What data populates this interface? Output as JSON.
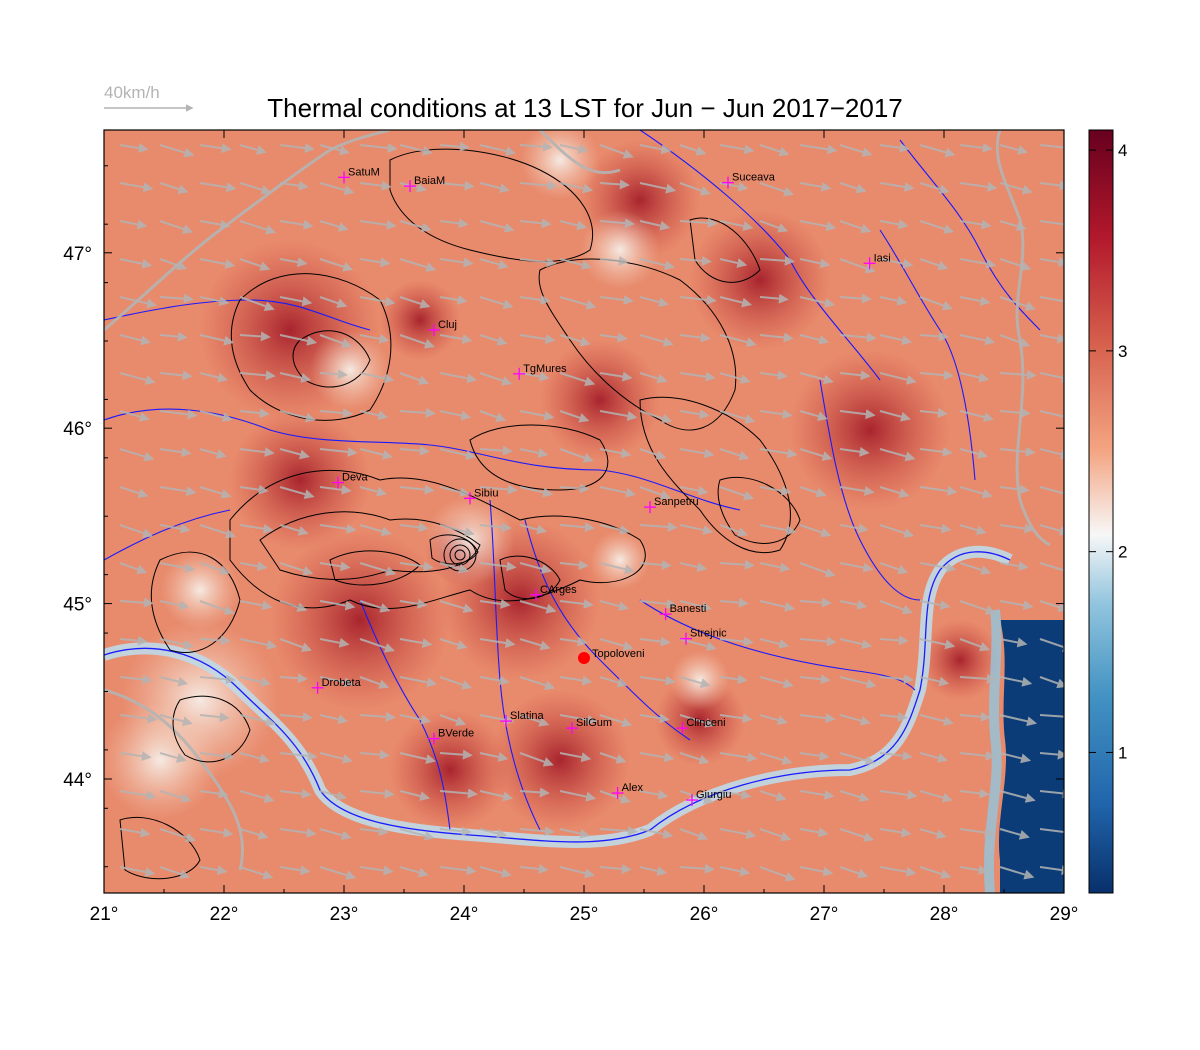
{
  "title": "Thermal conditions at 13 LST for Jun − Jun  2017−2017",
  "wind_reference": {
    "label": "40km/h"
  },
  "axes": {
    "x_ticks": [
      "21°",
      "22°",
      "23°",
      "24°",
      "25°",
      "26°",
      "27°",
      "28°",
      "29°"
    ],
    "x_values": [
      21,
      22,
      23,
      24,
      25,
      26,
      27,
      28,
      29
    ],
    "y_ticks": [
      "44°",
      "45°",
      "46°",
      "47°"
    ],
    "y_values": [
      44,
      45,
      46,
      47
    ],
    "lon_range": [
      21,
      29
    ],
    "lat_range": [
      43.35,
      47.7
    ]
  },
  "colorbar": {
    "ticks": [
      "1",
      "2",
      "3",
      "4"
    ],
    "values": [
      1,
      2,
      3,
      4
    ],
    "range": [
      0.3,
      4.1
    ],
    "colors": [
      "#08306b",
      "#2166ac",
      "#4393c3",
      "#92c5de",
      "#f7f7f7",
      "#f4a582",
      "#d6604d",
      "#b2182b",
      "#67001f"
    ]
  },
  "colors": {
    "background_field": "#e88a6c",
    "sea": "#0b3c77",
    "rivers": "#1a1aff",
    "borders": "#b4b4b4",
    "contours": "#000000",
    "station_marker": "#ff00ff",
    "highlight_station": "#ff0000"
  },
  "stations": [
    {
      "name": "SatuM",
      "lon": 23.0,
      "lat": 47.43
    },
    {
      "name": "BaiaM",
      "lon": 23.55,
      "lat": 47.38
    },
    {
      "name": "Suceava",
      "lon": 26.2,
      "lat": 47.4
    },
    {
      "name": "Iasi",
      "lon": 27.38,
      "lat": 46.94
    },
    {
      "name": "Cluj",
      "lon": 23.75,
      "lat": 46.56
    },
    {
      "name": "TgMures",
      "lon": 24.46,
      "lat": 46.31
    },
    {
      "name": "Deva",
      "lon": 22.95,
      "lat": 45.69
    },
    {
      "name": "Sibiu",
      "lon": 24.05,
      "lat": 45.6
    },
    {
      "name": "Sanpetru",
      "lon": 25.55,
      "lat": 45.55
    },
    {
      "name": "CArges",
      "lon": 24.6,
      "lat": 45.05
    },
    {
      "name": "Banesti",
      "lon": 25.68,
      "lat": 44.94
    },
    {
      "name": "Strejnic",
      "lon": 25.85,
      "lat": 44.8
    },
    {
      "name": "Drobeta",
      "lon": 22.78,
      "lat": 44.52
    },
    {
      "name": "Slatina",
      "lon": 24.35,
      "lat": 44.33
    },
    {
      "name": "SilGum",
      "lon": 24.9,
      "lat": 44.29
    },
    {
      "name": "Clinceni",
      "lon": 25.82,
      "lat": 44.29
    },
    {
      "name": "BVerde",
      "lon": 23.75,
      "lat": 44.23
    },
    {
      "name": "Alex",
      "lon": 25.28,
      "lat": 43.92
    },
    {
      "name": "Giurgiu",
      "lon": 25.9,
      "lat": 43.88
    }
  ],
  "highlight_station": {
    "name": "Topoloveni",
    "lon": 25.0,
    "lat": 44.69
  }
}
